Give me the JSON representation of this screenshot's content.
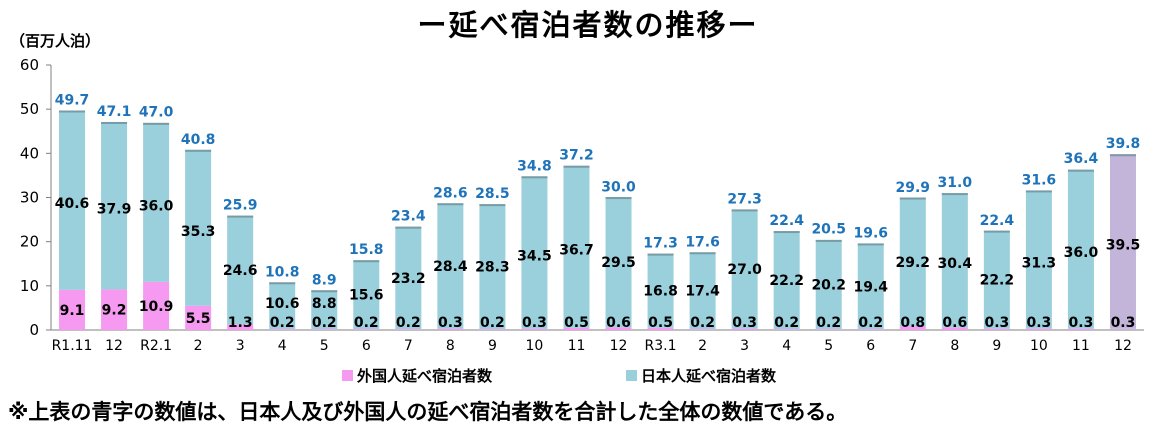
{
  "title": "ー延べ宿泊者数の推移ー",
  "unit_label": "（百万人泊）",
  "footnote": "※上表の青字の数値は、日本人及び外国人の延べ宿泊者数を合計した全体の数値である。",
  "colors": {
    "japanese": "#9ACFDC",
    "foreign": "#F59AF0",
    "latest": "#C3B5D9",
    "total_label": "#1F73B9",
    "axis": "#808080",
    "grid": "#C8C8C8"
  },
  "chart_data": {
    "type": "bar",
    "stacked": true,
    "categories": [
      "R1.11",
      "12",
      "R2.1",
      "2",
      "3",
      "4",
      "5",
      "6",
      "7",
      "8",
      "9",
      "10",
      "11",
      "12",
      "R3.1",
      "2",
      "3",
      "4",
      "5",
      "6",
      "7",
      "8",
      "9",
      "10",
      "11",
      "12"
    ],
    "ylim": [
      0,
      60
    ],
    "yticks": [
      0,
      10,
      20,
      30,
      40,
      50,
      60
    ],
    "grid": false,
    "legend_position": "bottom",
    "series": [
      {
        "name": "外国人延べ宿泊者数",
        "values": [
          9.1,
          9.2,
          10.9,
          5.5,
          1.3,
          0.2,
          0.2,
          0.2,
          0.2,
          0.3,
          0.2,
          0.3,
          0.5,
          0.6,
          0.5,
          0.2,
          0.3,
          0.2,
          0.2,
          0.2,
          0.8,
          0.6,
          0.3,
          0.3,
          0.3,
          0.3
        ]
      },
      {
        "name": "日本人延べ宿泊者数",
        "values": [
          40.6,
          37.9,
          36.0,
          35.3,
          24.6,
          10.6,
          8.8,
          15.6,
          23.2,
          28.4,
          28.3,
          34.5,
          36.7,
          29.5,
          16.8,
          17.4,
          27.0,
          22.2,
          20.2,
          19.4,
          29.2,
          30.4,
          22.2,
          31.3,
          36.0,
          39.5
        ]
      }
    ],
    "totals": [
      49.7,
      47.1,
      47.0,
      40.8,
      25.9,
      10.8,
      8.9,
      15.8,
      23.4,
      28.6,
      28.5,
      34.8,
      37.2,
      30.0,
      17.3,
      17.6,
      27.3,
      22.4,
      20.5,
      19.6,
      29.9,
      31.0,
      22.4,
      31.6,
      36.4,
      39.8
    ]
  }
}
